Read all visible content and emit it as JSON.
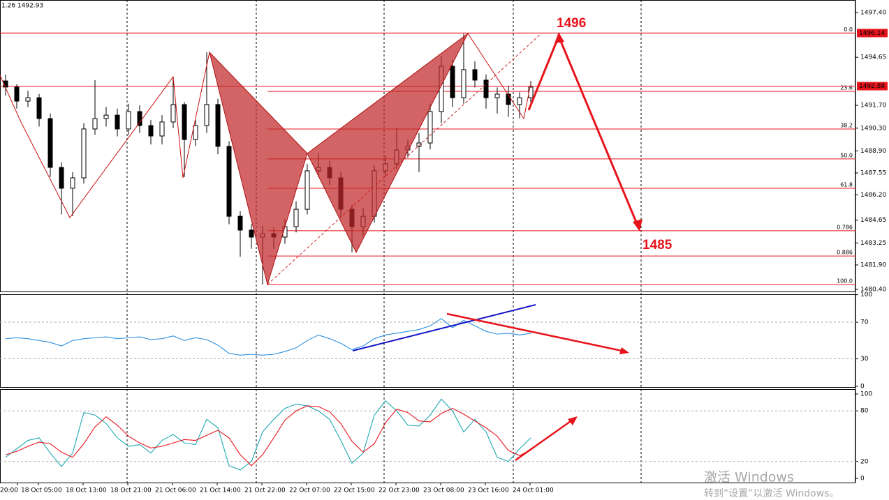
{
  "header": "1.26 1492.93",
  "x_labels": [
    "20:00",
    "18 Oct 05:00",
    "18 Oct 13:00",
    "18 Oct 21:00",
    "21 Oct 06:00",
    "21 Oct 14:00",
    "21 Oct 22:00",
    "22 Oct 07:00",
    "22 Oct 15:00",
    "22 Oct 23:00",
    "23 Oct 08:00",
    "23 Oct 16:00",
    "24 Oct 01:00"
  ],
  "annotations": [
    "1496",
    "1485"
  ],
  "watermark": {
    "line1": "激活 Windows",
    "line2": "转到“设置”以激活 Windows。"
  },
  "chart_data": [
    {
      "type": "candlestick",
      "open": [
        1493.2,
        1492.82,
        1491.96,
        1492.17,
        1490.89,
        1487.89,
        1486.61,
        1487.25,
        1490.25,
        1490.89,
        1491.1,
        1490.25,
        1491.32,
        1490.46,
        1489.82,
        1490.68,
        1491.75,
        1489.6,
        1490.46,
        1491.75,
        1489.18,
        1484.89,
        1484.04,
        1483.61,
        1483.82,
        1483.61,
        1484.25,
        1485.32,
        1487.68,
        1487.89,
        1487.25,
        1485.32,
        1484.25,
        1484.89,
        1487.68,
        1488.11,
        1488.96,
        1489.18,
        1489.39,
        1491.32,
        1494.1,
        1492.17,
        1493.89,
        1493.25,
        1492.17,
        1492.39,
        1491.75,
        1492.17
      ],
      "high": [
        1493.6,
        1493.0,
        1492.6,
        1492.4,
        1491.2,
        1488.2,
        1487.6,
        1490.6,
        1493.25,
        1491.6,
        1491.5,
        1491.8,
        1491.7,
        1490.8,
        1491.1,
        1493.46,
        1491.9,
        1490.8,
        1494.96,
        1492.1,
        1489.5,
        1485.2,
        1484.4,
        1484.3,
        1484.2,
        1484.7,
        1485.8,
        1488.1,
        1488.75,
        1488.3,
        1487.6,
        1485.6,
        1485.4,
        1488.0,
        1488.6,
        1490.3,
        1489.6,
        1490.0,
        1491.8,
        1494.7,
        1494.5,
        1496.1,
        1494.4,
        1493.6,
        1492.8,
        1492.9,
        1492.5,
        1493.2
      ],
      "low": [
        1492.3,
        1491.5,
        1491.6,
        1490.4,
        1487.3,
        1485.0,
        1484.9,
        1486.9,
        1489.9,
        1490.4,
        1489.8,
        1489.9,
        1490.0,
        1489.3,
        1489.3,
        1490.3,
        1487.3,
        1489.2,
        1490.0,
        1488.7,
        1484.4,
        1482.4,
        1482.9,
        1480.7,
        1482.9,
        1483.2,
        1483.9,
        1485.0,
        1487.3,
        1486.8,
        1484.8,
        1482.67,
        1483.7,
        1484.5,
        1487.3,
        1487.8,
        1488.5,
        1487.6,
        1489.0,
        1490.6,
        1491.6,
        1491.8,
        1492.8,
        1491.5,
        1491.2,
        1491.0,
        1490.9,
        1491.9
      ],
      "close": [
        1492.82,
        1491.96,
        1492.17,
        1490.89,
        1487.89,
        1486.61,
        1487.25,
        1490.25,
        1490.89,
        1491.1,
        1490.25,
        1491.32,
        1490.46,
        1489.82,
        1490.68,
        1491.75,
        1489.6,
        1490.46,
        1491.75,
        1489.18,
        1484.89,
        1484.04,
        1483.61,
        1483.82,
        1483.61,
        1484.25,
        1485.32,
        1487.68,
        1487.89,
        1487.25,
        1485.32,
        1484.25,
        1484.89,
        1487.68,
        1488.11,
        1488.96,
        1489.18,
        1489.39,
        1491.32,
        1494.1,
        1492.17,
        1493.89,
        1493.25,
        1492.17,
        1492.39,
        1491.75,
        1492.17,
        1492.82
      ],
      "ylim": [
        1480.27,
        1498.17
      ],
      "yticks": [
        {
          "value": 1497.4,
          "label": "1497.40"
        },
        1494.65,
        {
          "value": 1491.7,
          "label": "1491.70"
        },
        {
          "value": 1490.3,
          "label": "1490.30"
        },
        {
          "value": 1488.9,
          "label": "1488.90"
        },
        1487.55,
        {
          "value": 1486.2,
          "label": "1486.20"
        },
        1484.65,
        1483.25,
        {
          "value": 1481.9,
          "label": "1481.90"
        },
        {
          "value": 1480.4,
          "label": "1480.40"
        }
      ],
      "fib_levels": [
        {
          "label": "0.0",
          "price": 1496.14
        },
        {
          "label": "23.6",
          "price": 1492.56
        },
        {
          "label": "38.2",
          "price": 1490.25
        },
        {
          "label": "50.0",
          "price": 1488.41
        },
        {
          "label": "61.8",
          "price": 1486.61
        },
        {
          "label": "0.786",
          "price": 1484.0
        },
        {
          "label": "0.886",
          "price": 1482.45
        },
        {
          "label": "100.0",
          "price": 1480.7
        }
      ],
      "price_tags": [
        1496.14,
        1492.88
      ],
      "color": "#e8141c"
    },
    {
      "type": "line",
      "series": [
        {
          "color": "#2b8fe0",
          "values": [
            52,
            53,
            52,
            50,
            48,
            44,
            50,
            52,
            53,
            54,
            52,
            53,
            54,
            51,
            52,
            55,
            50,
            53,
            51,
            45,
            36,
            34,
            35,
            34,
            35,
            38,
            42,
            50,
            56,
            52,
            47,
            40,
            44,
            52,
            56,
            58,
            60,
            62,
            66,
            74,
            64,
            72,
            66,
            60,
            57,
            58,
            56,
            58
          ]
        }
      ],
      "ylim": [
        -0.8,
        100.5
      ],
      "yticks": [
        100,
        70,
        30,
        0
      ],
      "grid_ticks": [
        70,
        30
      ]
    },
    {
      "type": "line",
      "series": [
        {
          "color": "#1ca8b0",
          "values": [
            25,
            35,
            45,
            48,
            30,
            14,
            30,
            78,
            75,
            65,
            48,
            38,
            40,
            30,
            45,
            52,
            42,
            40,
            70,
            60,
            15,
            10,
            20,
            55,
            70,
            83,
            88,
            86,
            80,
            70,
            45,
            18,
            30,
            75,
            92,
            80,
            63,
            62,
            75,
            94,
            80,
            55,
            70,
            55,
            25,
            20,
            35,
            48
          ]
        },
        {
          "color": "#e8141c",
          "values": [
            28,
            32,
            38,
            43,
            41,
            31,
            25,
            41,
            61,
            73,
            63,
            50,
            42,
            36,
            38,
            42,
            46,
            45,
            51,
            57,
            48,
            28,
            15,
            28,
            48,
            69,
            80,
            86,
            85,
            79,
            65,
            44,
            31,
            41,
            66,
            82,
            78,
            68,
            67,
            77,
            83,
            76,
            68,
            60,
            50,
            33,
            27,
            34
          ]
        }
      ],
      "ylim": [
        -5,
        105.8
      ],
      "yticks": [
        100,
        80,
        20,
        0
      ],
      "grid_ticks": [
        80,
        20
      ]
    }
  ]
}
